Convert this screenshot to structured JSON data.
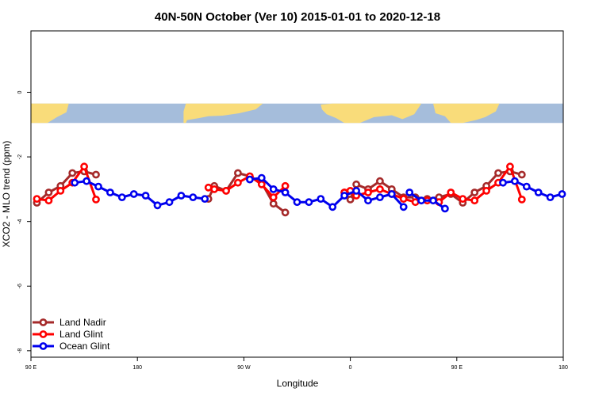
{
  "chart_data": {
    "type": "line",
    "title": "40N-50N October (Ver 10)   2015-01-01 to 2020-12-18",
    "xlabel": "Longitude",
    "ylabel": "XCO2 - MLO trend (ppm)",
    "xlim": [
      90,
      540
    ],
    "ylim": [
      -8.2,
      1.9
    ],
    "x_ticks": [
      {
        "value": 90,
        "label": "90 E"
      },
      {
        "value": 180,
        "label": "180"
      },
      {
        "value": 270,
        "label": "90 W"
      },
      {
        "value": 360,
        "label": "0"
      },
      {
        "value": 450,
        "label": "90 E"
      },
      {
        "value": 540,
        "label": "180"
      }
    ],
    "y_ticks": [
      {
        "value": 0,
        "label": "0"
      },
      {
        "value": -2,
        "label": "-2"
      },
      {
        "value": -4,
        "label": "-4"
      },
      {
        "value": -6,
        "label": "-6"
      },
      {
        "value": -8,
        "label": "-8"
      }
    ],
    "map_band": {
      "ymin": -0.95,
      "ymax": -0.35,
      "ocean_color": "#a5bddb",
      "land_color": "#f9dc7a"
    },
    "legend_position": "bottom-left",
    "grid": false,
    "series": [
      {
        "name": "Land Nadir",
        "color": "#a52a2a",
        "segments": [
          [
            [
              95,
              -3.42
            ],
            [
              105,
              -3.1
            ],
            [
              115,
              -2.9
            ],
            [
              125,
              -2.5
            ],
            [
              135,
              -2.45
            ],
            [
              145,
              -2.55
            ]
          ],
          [
            [
              240,
              -3.3
            ],
            [
              245,
              -2.9
            ],
            [
              255,
              -3.05
            ],
            [
              265,
              -2.5
            ],
            [
              275,
              -2.6
            ],
            [
              285,
              -2.8
            ],
            [
              295,
              -3.45
            ],
            [
              305,
              -3.72
            ]
          ],
          [
            [
              355,
              -3.1
            ],
            [
              360,
              -3.32
            ],
            [
              365,
              -2.85
            ],
            [
              375,
              -3.0
            ],
            [
              385,
              -2.75
            ],
            [
              395,
              -3.0
            ],
            [
              405,
              -3.25
            ],
            [
              415,
              -3.25
            ],
            [
              425,
              -3.3
            ],
            [
              435,
              -3.25
            ],
            [
              445,
              -3.15
            ],
            [
              455,
              -3.42
            ],
            [
              465,
              -3.1
            ],
            [
              475,
              -2.9
            ],
            [
              485,
              -2.5
            ],
            [
              495,
              -2.45
            ],
            [
              505,
              -2.55
            ]
          ]
        ]
      },
      {
        "name": "Land Glint",
        "color": "#ff0000",
        "segments": [
          [
            [
              95,
              -3.3
            ],
            [
              105,
              -3.35
            ],
            [
              115,
              -3.05
            ],
            [
              125,
              -2.8
            ],
            [
              135,
              -2.3
            ],
            [
              145,
              -3.32
            ]
          ],
          [
            [
              240,
              -2.95
            ],
            [
              245,
              -3.0
            ],
            [
              255,
              -3.05
            ],
            [
              265,
              -2.8
            ],
            [
              275,
              -2.6
            ],
            [
              285,
              -2.85
            ],
            [
              295,
              -3.25
            ],
            [
              305,
              -2.9
            ]
          ],
          [
            [
              355,
              -3.1
            ],
            [
              360,
              -3.05
            ],
            [
              365,
              -3.2
            ],
            [
              375,
              -3.1
            ],
            [
              385,
              -3.0
            ],
            [
              395,
              -3.15
            ],
            [
              405,
              -3.3
            ],
            [
              415,
              -3.4
            ],
            [
              425,
              -3.35
            ],
            [
              435,
              -3.4
            ],
            [
              445,
              -3.1
            ],
            [
              455,
              -3.3
            ],
            [
              465,
              -3.35
            ],
            [
              475,
              -3.05
            ],
            [
              485,
              -2.8
            ],
            [
              495,
              -2.3
            ],
            [
              505,
              -3.32
            ]
          ]
        ]
      },
      {
        "name": "Ocean Glint",
        "color": "#0000ee",
        "segments": [
          [
            [
              127,
              -2.8
            ],
            [
              137,
              -2.75
            ],
            [
              147,
              -2.92
            ],
            [
              157,
              -3.1
            ],
            [
              167,
              -3.25
            ],
            [
              177,
              -3.15
            ],
            [
              187,
              -3.2
            ],
            [
              197,
              -3.5
            ],
            [
              207,
              -3.4
            ],
            [
              217,
              -3.2
            ],
            [
              227,
              -3.25
            ],
            [
              237,
              -3.3
            ]
          ],
          [
            [
              275,
              -2.7
            ],
            [
              285,
              -2.65
            ],
            [
              295,
              -3.0
            ],
            [
              305,
              -3.1
            ],
            [
              315,
              -3.4
            ],
            [
              325,
              -3.4
            ],
            [
              335,
              -3.3
            ],
            [
              345,
              -3.55
            ],
            [
              355,
              -3.2
            ],
            [
              365,
              -3.05
            ],
            [
              375,
              -3.35
            ],
            [
              385,
              -3.25
            ],
            [
              395,
              -3.15
            ],
            [
              405,
              -3.55
            ]
          ],
          [
            [
              410,
              -3.1
            ],
            [
              420,
              -3.35
            ],
            [
              430,
              -3.35
            ],
            [
              440,
              -3.6
            ]
          ],
          [
            [
              489,
              -2.8
            ],
            [
              499,
              -2.75
            ],
            [
              509,
              -2.92
            ],
            [
              519,
              -3.1
            ],
            [
              529,
              -3.25
            ],
            [
              539,
              -3.15
            ]
          ]
        ]
      }
    ]
  }
}
